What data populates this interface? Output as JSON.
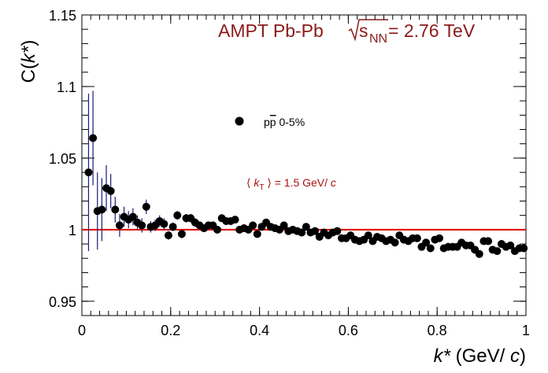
{
  "chart_data": {
    "type": "scatter",
    "title": "AMPT Pb-Pb",
    "energy_label": {
      "symbol": "s",
      "subscript": "NN",
      "value_text": " = 2.76 TeV"
    },
    "xlabel": {
      "var": "k*",
      "unit_open": " (GeV/",
      "unit_c": " c",
      "unit_close": ")"
    },
    "ylabel": {
      "prefix": "C(",
      "var": "k*",
      "suffix": ")"
    },
    "annotation": {
      "open": "⟨ ",
      "var": "k",
      "sub": "T",
      "close": " ⟩ = 1.5 GeV/",
      "c": " c"
    },
    "legend": {
      "position": "upper-center",
      "label_p": "p",
      "label_pbar": "p",
      "label_rest": " 0-5%"
    },
    "xlim": [
      0,
      1
    ],
    "ylim": [
      0.94,
      1.15
    ],
    "xticks": [
      "0",
      "0.2",
      "0.4",
      "0.6",
      "0.8",
      "1"
    ],
    "yticks": [
      "0.95",
      "1",
      "1.05",
      "1.1",
      "1.15"
    ],
    "reference_line": 1,
    "colors": {
      "title": "#8b1a1a",
      "annotation": "#aa1111",
      "reference": "#dd0000",
      "error": "#1a1a7a",
      "marker": "#000000"
    },
    "series": [
      {
        "x": [
          0.015,
          0.025,
          0.035,
          0.045,
          0.055,
          0.065,
          0.075,
          0.085,
          0.095,
          0.105,
          0.115,
          0.125,
          0.135,
          0.145,
          0.155,
          0.165,
          0.175,
          0.185,
          0.195,
          0.205,
          0.215,
          0.225,
          0.235,
          0.245,
          0.255,
          0.265,
          0.275,
          0.285,
          0.295,
          0.305,
          0.315,
          0.325,
          0.335,
          0.345,
          0.355,
          0.365,
          0.375,
          0.385,
          0.395,
          0.405,
          0.415,
          0.425,
          0.435,
          0.445,
          0.455,
          0.465,
          0.475,
          0.485,
          0.495,
          0.505,
          0.515,
          0.525,
          0.535,
          0.545,
          0.555,
          0.565,
          0.575,
          0.585,
          0.595,
          0.605,
          0.615,
          0.625,
          0.635,
          0.645,
          0.655,
          0.665,
          0.675,
          0.685,
          0.695,
          0.705,
          0.715,
          0.725,
          0.735,
          0.745,
          0.755,
          0.765,
          0.775,
          0.785,
          0.795,
          0.805,
          0.815,
          0.825,
          0.835,
          0.845,
          0.855,
          0.865,
          0.875,
          0.885,
          0.895,
          0.905,
          0.915,
          0.925,
          0.935,
          0.945,
          0.955,
          0.965,
          0.975,
          0.985,
          0.995
        ],
        "y": [
          1.04,
          1.064,
          1.013,
          1.014,
          1.029,
          1.027,
          1.014,
          1.003,
          1.009,
          1.007,
          1.009,
          1.005,
          1.003,
          1.016,
          1.002,
          1.003,
          1.006,
          1.004,
          0.996,
          1.002,
          1.01,
          0.997,
          1.008,
          1.008,
          1.005,
          1.003,
          1.001,
          1.003,
          1.003,
          1.0,
          1.008,
          1.006,
          1.006,
          1.007,
          1.0,
          1.001,
          1.0,
          1.003,
          0.997,
          1.002,
          1.005,
          1.002,
          1.001,
          1.0,
          1.003,
          0.999,
          1.0,
          0.999,
          0.998,
          1.002,
          0.998,
          0.999,
          0.995,
          0.998,
          0.996,
          0.998,
          0.999,
          0.994,
          0.994,
          0.996,
          0.993,
          0.992,
          0.993,
          0.996,
          0.992,
          0.995,
          0.994,
          0.992,
          0.993,
          0.991,
          0.996,
          0.993,
          0.992,
          0.994,
          0.994,
          0.988,
          0.991,
          0.987,
          0.993,
          0.994,
          0.987,
          0.988,
          0.988,
          0.988,
          0.991,
          0.989,
          0.989,
          0.986,
          0.983,
          0.992,
          0.992,
          0.986,
          0.985,
          0.99,
          0.988,
          0.989,
          0.985,
          0.987,
          0.987
        ],
        "err": [
          0.055,
          0.033,
          0.027,
          0.022,
          0.016,
          0.012,
          0.009,
          0.008,
          0.007,
          0.006,
          0.006,
          0.005,
          0.005,
          0.005,
          0.004,
          0.004,
          0.004,
          0.004,
          0.003,
          0.003,
          0.003,
          0.003,
          0.003,
          0.003,
          0.003,
          0.002,
          0.002,
          0.002,
          0.002,
          0.002,
          0.002,
          0.002,
          0.002,
          0.002,
          0.002,
          0.002,
          0.002,
          0.002,
          0.002,
          0.002,
          0.002,
          0.002,
          0.002,
          0.002,
          0.002,
          0.002,
          0.002,
          0.002,
          0.002,
          0.002,
          0.002,
          0.002,
          0.002,
          0.002,
          0.002,
          0.002,
          0.002,
          0.002,
          0.002,
          0.002,
          0.002,
          0.002,
          0.002,
          0.002,
          0.002,
          0.002,
          0.002,
          0.002,
          0.002,
          0.002,
          0.002,
          0.002,
          0.002,
          0.002,
          0.002,
          0.002,
          0.002,
          0.002,
          0.002,
          0.002,
          0.002,
          0.002,
          0.002,
          0.002,
          0.002,
          0.002,
          0.002,
          0.002,
          0.002,
          0.002,
          0.002,
          0.002,
          0.002,
          0.002,
          0.002,
          0.002,
          0.002,
          0.002,
          0.002
        ]
      }
    ]
  }
}
